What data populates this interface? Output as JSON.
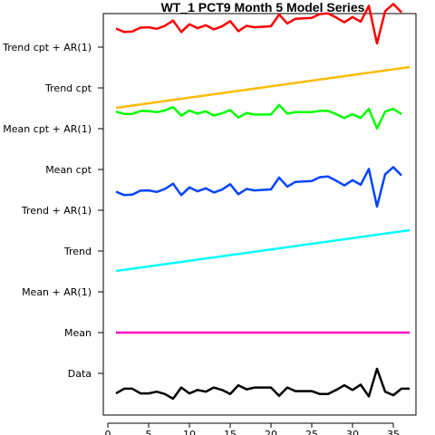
{
  "chart_data": {
    "type": "line",
    "title": "WT_1 PCT9 Month 5 Model Series",
    "xlabel": "",
    "ylabel": "",
    "xlim": [
      0,
      38
    ],
    "xticks": [
      0,
      5,
      10,
      15,
      20,
      25,
      30,
      35
    ],
    "grid": false,
    "legend": "none",
    "x": [
      1,
      2,
      3,
      4,
      5,
      6,
      7,
      8,
      9,
      10,
      11,
      12,
      13,
      14,
      15,
      16,
      17,
      18,
      19,
      20,
      21,
      22,
      23,
      24,
      25,
      26,
      27,
      28,
      29,
      30,
      31,
      32,
      33,
      34,
      35,
      36,
      37
    ],
    "series": [
      {
        "name": "Trend cpt + AR(1)",
        "color": "#ff0000",
        "x": [
          1,
          2,
          3,
          4,
          5,
          6,
          7,
          8,
          9,
          10,
          11,
          12,
          13,
          14,
          15,
          16,
          17,
          18,
          19,
          20,
          21,
          22,
          23,
          24,
          25,
          26,
          27,
          28,
          29,
          30,
          31,
          32,
          33,
          34,
          35,
          36
        ],
        "values": [
          0.27,
          -0.02,
          0.02,
          0.35,
          0.38,
          0.25,
          0.5,
          0.95,
          -0.02,
          0.63,
          0.3,
          0.55,
          0.2,
          0.45,
          0.9,
          0.05,
          0.5,
          0.38,
          0.42,
          0.46,
          1.47,
          0.7,
          1.1,
          1.14,
          1.18,
          1.5,
          1.55,
          1.2,
          0.8,
          1.25,
          0.85,
          2.2,
          -1.0,
          1.75,
          2.35,
          1.65
        ]
      },
      {
        "name": "Trend cpt",
        "color": "#ffbb00",
        "x": [
          1,
          37
        ],
        "values": [
          0.0,
          1.0
        ]
      },
      {
        "name": "Mean cpt + AR(1)",
        "color": "#00ff00",
        "x": [
          1,
          2,
          3,
          4,
          5,
          6,
          7,
          8,
          9,
          10,
          11,
          12,
          13,
          14,
          15,
          16,
          17,
          18,
          19,
          20,
          21,
          22,
          23,
          24,
          25,
          26,
          27,
          28,
          29,
          30,
          31,
          32,
          33,
          34,
          35,
          36
        ],
        "values": [
          0.14,
          -0.05,
          -0.05,
          0.19,
          0.19,
          0.09,
          0.24,
          0.52,
          -0.19,
          0.23,
          -0.03,
          0.18,
          -0.19,
          -0.01,
          0.28,
          -0.36,
          0.02,
          -0.11,
          -0.11,
          -0.1,
          0.71,
          -0.03,
          0.1,
          0.1,
          0.1,
          0.21,
          0.21,
          -0.08,
          -0.4,
          -0.08,
          -0.4,
          0.38,
          -1.3,
          0.14,
          0.38,
          -0.08
        ]
      },
      {
        "name": "Mean cpt",
        "color": "#000000",
        "x": [],
        "values": []
      },
      {
        "name": "Trend + AR(1)",
        "color": "#0044ff",
        "x": [
          1,
          2,
          3,
          4,
          5,
          6,
          7,
          8,
          9,
          10,
          11,
          12,
          13,
          14,
          15,
          16,
          17,
          18,
          19,
          20,
          21,
          22,
          23,
          24,
          25,
          26,
          27,
          28,
          29,
          30,
          31,
          32,
          33,
          34,
          35,
          36
        ],
        "values": [
          0.27,
          -0.02,
          0.02,
          0.35,
          0.38,
          0.25,
          0.5,
          0.95,
          -0.02,
          0.63,
          0.3,
          0.55,
          0.2,
          0.45,
          0.9,
          0.05,
          0.5,
          0.38,
          0.42,
          0.46,
          1.47,
          0.7,
          1.1,
          1.14,
          1.18,
          1.5,
          1.55,
          1.2,
          0.8,
          1.25,
          0.85,
          2.2,
          -1.0,
          1.75,
          2.35,
          1.65
        ]
      },
      {
        "name": "Trend",
        "color": "#00ffff",
        "x": [
          1,
          37
        ],
        "values": [
          0.0,
          1.0
        ]
      },
      {
        "name": "Mean + AR(1)",
        "color": "#000000",
        "x": [],
        "values": []
      },
      {
        "name": "Mean",
        "color": "#ff00cc",
        "x": [
          1,
          37
        ],
        "values": [
          0.0,
          0.0
        ]
      },
      {
        "name": "Data",
        "color": "#000000",
        "x": [
          1,
          2,
          3,
          4,
          5,
          6,
          7,
          8,
          9,
          10,
          11,
          12,
          13,
          14,
          15,
          16,
          17,
          18,
          19,
          20,
          21,
          22,
          23,
          24,
          25,
          26,
          27,
          28,
          29,
          30,
          31,
          32,
          33,
          34,
          35,
          36,
          37
        ],
        "values": [
          -0.55,
          -0.15,
          -0.15,
          -0.55,
          -0.55,
          -0.4,
          -0.6,
          -1.0,
          -0.05,
          -0.55,
          -0.25,
          -0.4,
          -0.05,
          -0.25,
          -0.6,
          0.15,
          -0.2,
          -0.05,
          -0.05,
          -0.05,
          -0.75,
          -0.05,
          -0.35,
          -0.35,
          -0.35,
          -0.6,
          -0.6,
          -0.25,
          0.15,
          -0.25,
          0.2,
          -0.8,
          1.55,
          -0.4,
          -0.7,
          -0.15,
          -0.15
        ]
      }
    ]
  }
}
